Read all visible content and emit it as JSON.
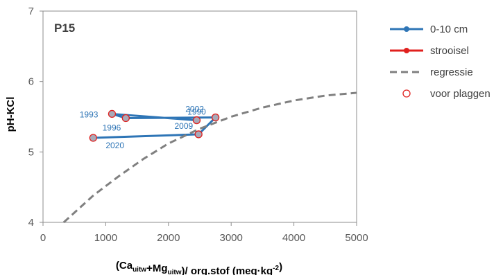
{
  "chart_data": {
    "type": "scatter",
    "panel_label": "P15",
    "ylabel": "pH-KCl",
    "xlabel": {
      "parts": [
        {
          "text": "(Ca",
          "sub": false
        },
        {
          "text": "uitw",
          "sub": true
        },
        {
          "text": "+Mg",
          "sub": false
        },
        {
          "text": "uitw",
          "sub": true
        },
        {
          "text": ")/ org.stof (meq·kg",
          "sub": false
        },
        {
          "text": "-2",
          "sup": true
        },
        {
          "text": ")",
          "sub": false
        }
      ]
    },
    "xlim": [
      0,
      5000
    ],
    "ylim": [
      4,
      7
    ],
    "x_ticks": [
      "0",
      "1000",
      "2000",
      "3000",
      "4000",
      "5000"
    ],
    "y_ticks": [
      "4",
      "5",
      "6",
      "7"
    ],
    "grid": false,
    "legend_position": "right",
    "series": [
      {
        "name": "0-10 cm",
        "kind": "line-marker",
        "color": "#2e75b6",
        "points": [
          {
            "x": 2450,
            "y": 5.45,
            "label": "1990"
          },
          {
            "x": 1100,
            "y": 5.54,
            "label": "1993"
          },
          {
            "x": 1320,
            "y": 5.48,
            "label": "1996"
          },
          {
            "x": 2750,
            "y": 5.49,
            "label": "2002"
          },
          {
            "x": 2480,
            "y": 5.25,
            "label": "2009"
          },
          {
            "x": 800,
            "y": 5.2,
            "label": "2020"
          }
        ]
      },
      {
        "name": "strooisel",
        "kind": "line-marker",
        "color": "#e0201e",
        "points": []
      },
      {
        "name": "regressie",
        "kind": "dashed-curve",
        "color": "#808080",
        "points": [
          {
            "x": 330,
            "y": 4.0
          },
          {
            "x": 800,
            "y": 4.38
          },
          {
            "x": 1200,
            "y": 4.65
          },
          {
            "x": 1600,
            "y": 4.9
          },
          {
            "x": 2000,
            "y": 5.12
          },
          {
            "x": 2500,
            "y": 5.33
          },
          {
            "x": 3000,
            "y": 5.5
          },
          {
            "x": 3500,
            "y": 5.63
          },
          {
            "x": 4000,
            "y": 5.73
          },
          {
            "x": 4500,
            "y": 5.8
          },
          {
            "x": 5000,
            "y": 5.84
          }
        ]
      },
      {
        "name": "voor plaggen",
        "kind": "open-circle",
        "color": "#e0201e",
        "points": [
          {
            "x": 2450,
            "y": 5.45
          },
          {
            "x": 1100,
            "y": 5.54
          },
          {
            "x": 1320,
            "y": 5.48
          },
          {
            "x": 2750,
            "y": 5.49
          },
          {
            "x": 2480,
            "y": 5.25
          },
          {
            "x": 800,
            "y": 5.2
          }
        ]
      }
    ]
  }
}
